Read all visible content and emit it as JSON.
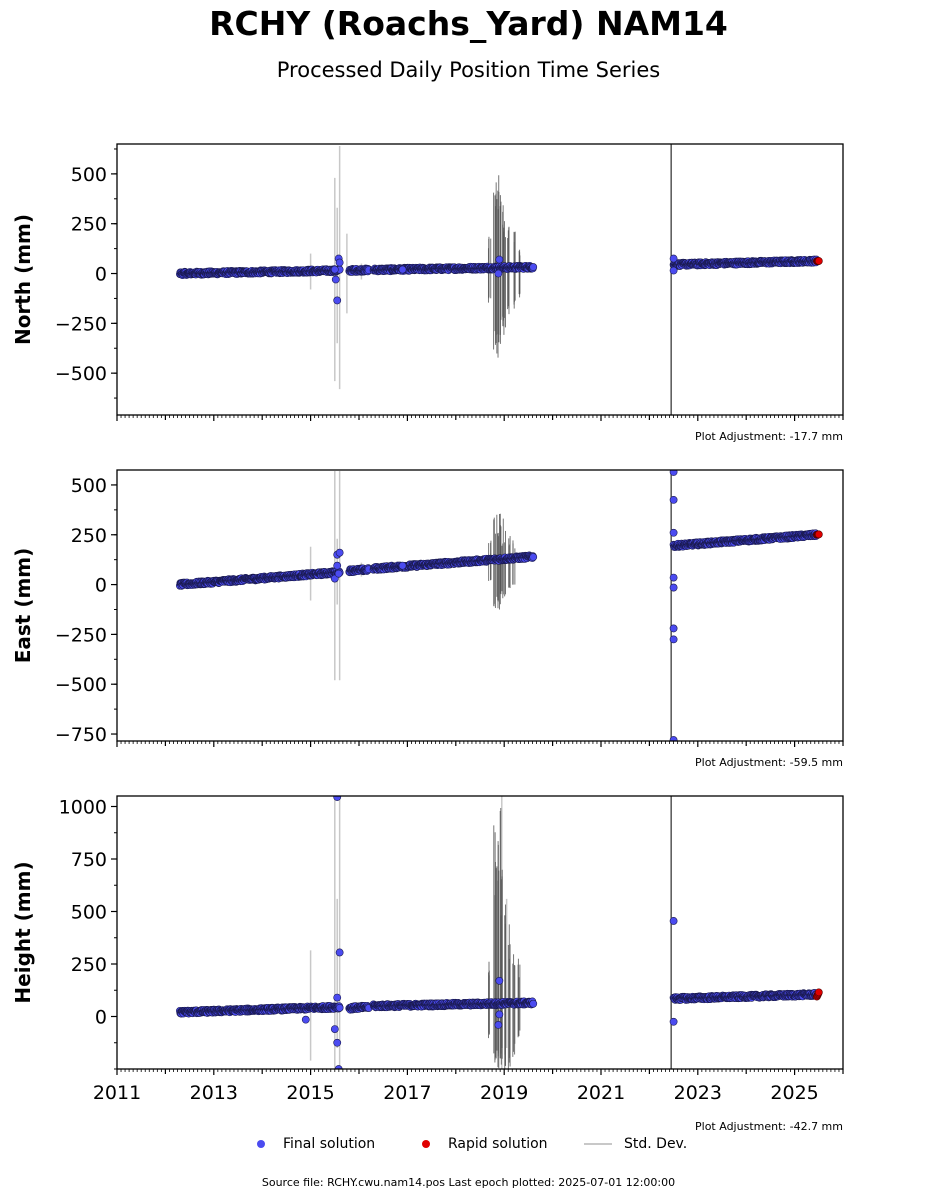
{
  "title": "RCHY (Roachs_Yard) NAM14",
  "subtitle": "Processed Daily Position Time Series",
  "footer": "Source file: RCHY.cwu.nam14.pos  Last epoch plotted: 2025-07-01 12:00:00",
  "legend": {
    "final": "Final solution",
    "rapid": "Rapid solution",
    "std": "Std. Dev."
  },
  "colors": {
    "final": "#4b4bf0",
    "rapid": "#e00000",
    "std": "#c8c8c8",
    "std_dark": "#555555"
  },
  "chart_data": [
    {
      "type": "scatter",
      "ylabel": "North (mm)",
      "adjustment": "Plot Adjustment: -17.7 mm",
      "xlim": [
        2011,
        2026
      ],
      "ylim": [
        -710,
        650
      ],
      "yticks": [
        -500,
        -250,
        0,
        250,
        500
      ],
      "yticklabels": [
        "−500",
        "−250",
        "0",
        "250",
        "500"
      ],
      "segments": [
        {
          "x": [
            2012.3,
            2015.6
          ],
          "y": [
            0,
            15
          ]
        },
        {
          "x": [
            2015.8,
            2016.2
          ],
          "y": [
            15,
            18
          ]
        },
        {
          "x": [
            2016.3,
            2019.6
          ],
          "y": [
            18,
            32
          ]
        },
        {
          "x": [
            2022.5,
            2025.45
          ],
          "y": [
            45,
            63
          ]
        }
      ],
      "rapid": {
        "x": [
          2025.46,
          2025.5
        ],
        "y": [
          62,
          63
        ]
      },
      "outliers": [
        {
          "x": 2015.55,
          "y": -135
        },
        {
          "x": 2015.52,
          "y": -30
        },
        {
          "x": 2015.58,
          "y": 75
        },
        {
          "x": 2015.6,
          "y": 55
        },
        {
          "x": 2015.5,
          "y": 20
        },
        {
          "x": 2018.9,
          "y": 70
        },
        {
          "x": 2018.88,
          "y": 0
        },
        {
          "x": 2022.5,
          "y": 15
        },
        {
          "x": 2022.5,
          "y": 75
        },
        {
          "x": 2016.9,
          "y": 20
        }
      ],
      "std_light": [
        {
          "x": 2015.0,
          "y0": -80,
          "y1": 100
        },
        {
          "x": 2015.5,
          "y0": -540,
          "y1": 480
        },
        {
          "x": 2015.6,
          "y0": -580,
          "y1": 640
        },
        {
          "x": 2015.55,
          "y0": -350,
          "y1": 330
        },
        {
          "x": 2015.75,
          "y0": -200,
          "y1": 200
        },
        {
          "x": 2016.05,
          "y0": -30,
          "y1": 50
        }
      ],
      "std_dark": [
        {
          "x": 2018.8,
          "y0": -400,
          "y1": 460
        },
        {
          "x": 2018.85,
          "y0": -450,
          "y1": 500
        },
        {
          "x": 2018.9,
          "y0": -460,
          "y1": 510
        },
        {
          "x": 2018.95,
          "y0": -300,
          "y1": 380
        },
        {
          "x": 2019.0,
          "y0": -350,
          "y1": 300
        },
        {
          "x": 2019.1,
          "y0": -250,
          "y1": 250
        },
        {
          "x": 2019.2,
          "y0": -200,
          "y1": 260
        },
        {
          "x": 2019.3,
          "y0": -120,
          "y1": 150
        },
        {
          "x": 2018.7,
          "y0": -150,
          "y1": 200
        }
      ],
      "vline": 2022.45
    },
    {
      "type": "scatter",
      "ylabel": "East (mm)",
      "adjustment": "Plot Adjustment: -59.5 mm",
      "xlim": [
        2011,
        2026
      ],
      "ylim": [
        -785,
        575
      ],
      "yticks": [
        -750,
        -500,
        -250,
        0,
        250,
        500
      ],
      "yticklabels": [
        "−750",
        "−500",
        "−250",
        "0",
        "250",
        "500"
      ],
      "segments": [
        {
          "x": [
            2012.3,
            2015.6
          ],
          "y": [
            0,
            62
          ]
        },
        {
          "x": [
            2015.8,
            2016.2
          ],
          "y": [
            70,
            75
          ]
        },
        {
          "x": [
            2016.3,
            2019.6
          ],
          "y": [
            80,
            140
          ]
        },
        {
          "x": [
            2022.5,
            2025.45
          ],
          "y": [
            195,
            250
          ]
        }
      ],
      "rapid": {
        "x": [
          2025.46,
          2025.5
        ],
        "y": [
          250,
          252
        ]
      },
      "outliers": [
        {
          "x": 2015.55,
          "y": 150
        },
        {
          "x": 2015.6,
          "y": 160
        },
        {
          "x": 2015.55,
          "y": 95
        },
        {
          "x": 2015.5,
          "y": 30
        },
        {
          "x": 2015.58,
          "y": 55
        },
        {
          "x": 2022.5,
          "y": 565
        },
        {
          "x": 2022.5,
          "y": 425
        },
        {
          "x": 2022.5,
          "y": 260
        },
        {
          "x": 2022.5,
          "y": 35
        },
        {
          "x": 2022.5,
          "y": -15
        },
        {
          "x": 2022.5,
          "y": -220
        },
        {
          "x": 2022.5,
          "y": -275
        },
        {
          "x": 2022.5,
          "y": -780
        },
        {
          "x": 2016.9,
          "y": 95
        }
      ],
      "std_light": [
        {
          "x": 2015.0,
          "y0": -80,
          "y1": 190
        },
        {
          "x": 2015.5,
          "y0": -480,
          "y1": 570
        },
        {
          "x": 2015.6,
          "y0": -480,
          "y1": 570
        },
        {
          "x": 2015.55,
          "y0": -100,
          "y1": 230
        },
        {
          "x": 2016.05,
          "y0": 40,
          "y1": 110
        }
      ],
      "std_dark": [
        {
          "x": 2018.8,
          "y0": -120,
          "y1": 380
        },
        {
          "x": 2018.85,
          "y0": -100,
          "y1": 370
        },
        {
          "x": 2018.9,
          "y0": -130,
          "y1": 390
        },
        {
          "x": 2018.95,
          "y0": -50,
          "y1": 320
        },
        {
          "x": 2019.0,
          "y0": -80,
          "y1": 340
        },
        {
          "x": 2019.1,
          "y0": -20,
          "y1": 300
        },
        {
          "x": 2019.2,
          "y0": 0,
          "y1": 260
        },
        {
          "x": 2018.7,
          "y0": 30,
          "y1": 230
        }
      ],
      "vline": 2022.45
    },
    {
      "type": "scatter",
      "ylabel": "Height (mm)",
      "adjustment": "Plot Adjustment: -42.7 mm",
      "xlim": [
        2011,
        2026
      ],
      "ylim": [
        -250,
        1050
      ],
      "yticks": [
        0,
        250,
        500,
        750,
        1000
      ],
      "yticklabels": [
        "0",
        "250",
        "500",
        "750",
        "1000"
      ],
      "xticks": [
        2011,
        2013,
        2015,
        2017,
        2019,
        2021,
        2023,
        2025
      ],
      "xticklabels": [
        "2011",
        "2013",
        "2015",
        "2017",
        "2019",
        "2021",
        "2023",
        "2025"
      ],
      "segments": [
        {
          "x": [
            2012.3,
            2015.6
          ],
          "y": [
            20,
            45
          ]
        },
        {
          "x": [
            2015.8,
            2016.2
          ],
          "y": [
            40,
            45
          ]
        },
        {
          "x": [
            2016.3,
            2019.6
          ],
          "y": [
            50,
            65
          ]
        },
        {
          "x": [
            2022.5,
            2025.45
          ],
          "y": [
            85,
            105
          ]
        }
      ],
      "rapid": {
        "x": [
          2025.46,
          2025.5
        ],
        "y": [
          95,
          115
        ]
      },
      "outliers": [
        {
          "x": 2015.55,
          "y": 1045
        },
        {
          "x": 2015.6,
          "y": 305
        },
        {
          "x": 2015.55,
          "y": 90
        },
        {
          "x": 2015.5,
          "y": -60
        },
        {
          "x": 2015.55,
          "y": -125
        },
        {
          "x": 2015.58,
          "y": -250
        },
        {
          "x": 2014.9,
          "y": -15
        },
        {
          "x": 2018.9,
          "y": 170
        },
        {
          "x": 2018.88,
          "y": -40
        },
        {
          "x": 2018.9,
          "y": 10
        },
        {
          "x": 2022.5,
          "y": 455
        },
        {
          "x": 2022.5,
          "y": -25
        }
      ],
      "std_light": [
        {
          "x": 2015.0,
          "y0": -210,
          "y1": 315
        },
        {
          "x": 2015.5,
          "y0": -250,
          "y1": 1050
        },
        {
          "x": 2015.6,
          "y0": -250,
          "y1": 1050
        },
        {
          "x": 2015.55,
          "y0": -150,
          "y1": 560
        },
        {
          "x": 2018.95,
          "y0": -250,
          "y1": 1050
        },
        {
          "x": 2019.05,
          "y0": -150,
          "y1": 560
        }
      ],
      "std_dark": [
        {
          "x": 2018.8,
          "y0": -250,
          "y1": 920
        },
        {
          "x": 2018.85,
          "y0": -250,
          "y1": 880
        },
        {
          "x": 2018.9,
          "y0": -250,
          "y1": 1000
        },
        {
          "x": 2018.95,
          "y0": -250,
          "y1": 700
        },
        {
          "x": 2019.0,
          "y0": -250,
          "y1": 600
        },
        {
          "x": 2019.1,
          "y0": -250,
          "y1": 450
        },
        {
          "x": 2019.2,
          "y0": -200,
          "y1": 380
        },
        {
          "x": 2019.3,
          "y0": -100,
          "y1": 300
        },
        {
          "x": 2018.7,
          "y0": -120,
          "y1": 300
        }
      ],
      "vline": 2022.45
    }
  ]
}
